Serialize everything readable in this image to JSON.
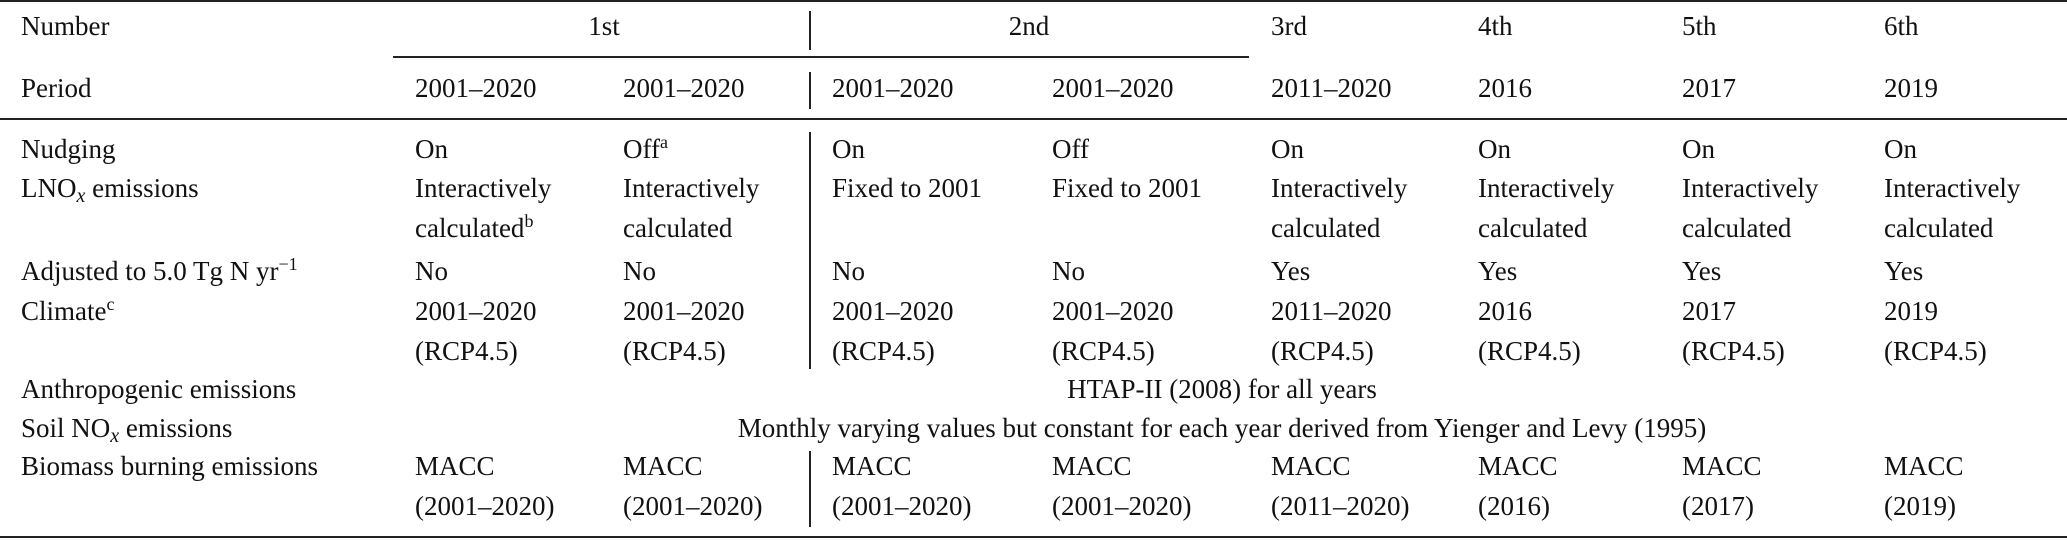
{
  "header": {
    "number_label": "Number",
    "period_label": "Period",
    "numbers": [
      "1st",
      "2nd",
      "3rd",
      "4th",
      "5th",
      "6th"
    ],
    "periods": [
      "2001–2020",
      "2001–2020",
      "2001–2020",
      "2001–2020",
      "2011–2020",
      "2016",
      "2017",
      "2019"
    ]
  },
  "rows": [
    {
      "label": [
        {
          "text": "Nudging"
        }
      ],
      "cells": [
        {
          "lines": [
            "On"
          ]
        },
        {
          "lines": [
            "Off"
          ],
          "note": "a"
        },
        {
          "lines": [
            "On"
          ]
        },
        {
          "lines": [
            "Off"
          ]
        },
        {
          "lines": [
            "On"
          ]
        },
        {
          "lines": [
            "On"
          ]
        },
        {
          "lines": [
            "On"
          ]
        },
        {
          "lines": [
            "On"
          ]
        }
      ]
    },
    {
      "label": [
        {
          "text": "LNO"
        },
        {
          "text": "x",
          "style": "sub"
        },
        {
          "text": " emissions"
        }
      ],
      "cells": [
        {
          "lines": [
            "Interactively",
            "calculated"
          ],
          "note": "b"
        },
        {
          "lines": [
            "Interactively",
            "calculated"
          ]
        },
        {
          "lines": [
            "Fixed to 2001"
          ]
        },
        {
          "lines": [
            "Fixed to 2001"
          ]
        },
        {
          "lines": [
            "Interactively",
            "calculated"
          ]
        },
        {
          "lines": [
            "Interactively",
            "calculated"
          ]
        },
        {
          "lines": [
            "Interactively",
            "calculated"
          ]
        },
        {
          "lines": [
            "Interactively",
            "calculated"
          ]
        }
      ]
    },
    {
      "label": [
        {
          "text": "Adjusted to 5.0 Tg N yr"
        },
        {
          "text": "−1",
          "style": "sup"
        }
      ],
      "cells": [
        {
          "lines": [
            "No"
          ]
        },
        {
          "lines": [
            "No"
          ]
        },
        {
          "lines": [
            "No"
          ]
        },
        {
          "lines": [
            "No"
          ]
        },
        {
          "lines": [
            "Yes"
          ]
        },
        {
          "lines": [
            "Yes"
          ]
        },
        {
          "lines": [
            "Yes"
          ]
        },
        {
          "lines": [
            "Yes"
          ]
        }
      ]
    },
    {
      "label": [
        {
          "text": "Climate"
        },
        {
          "text": "c",
          "style": "sup"
        }
      ],
      "cells": [
        {
          "lines": [
            "2001–2020",
            "(RCP4.5)"
          ]
        },
        {
          "lines": [
            "2001–2020",
            "(RCP4.5)"
          ]
        },
        {
          "lines": [
            "2001–2020",
            "(RCP4.5)"
          ]
        },
        {
          "lines": [
            "2001–2020",
            "(RCP4.5)"
          ]
        },
        {
          "lines": [
            "2011–2020",
            "(RCP4.5)"
          ]
        },
        {
          "lines": [
            "2016",
            "(RCP4.5)"
          ]
        },
        {
          "lines": [
            "2017",
            "(RCP4.5)"
          ]
        },
        {
          "lines": [
            "2019",
            "(RCP4.5)"
          ]
        }
      ]
    },
    {
      "label": [
        {
          "text": "Anthropogenic emissions"
        }
      ],
      "span": "HTAP-II (2008) for all years"
    },
    {
      "label": [
        {
          "text": "Soil NO"
        },
        {
          "text": "x",
          "style": "sub"
        },
        {
          "text": " emissions"
        }
      ],
      "span": "Monthly varying values but constant for each year derived from Yienger and Levy (1995)"
    },
    {
      "label": [
        {
          "text": "Biomass burning emissions"
        }
      ],
      "cells": [
        {
          "lines": [
            "MACC",
            "(2001–2020)"
          ]
        },
        {
          "lines": [
            "MACC",
            "(2001–2020)"
          ]
        },
        {
          "lines": [
            "MACC",
            "(2001–2020)"
          ]
        },
        {
          "lines": [
            "MACC",
            "(2001–2020)"
          ]
        },
        {
          "lines": [
            "MACC",
            "(2011–2020)"
          ]
        },
        {
          "lines": [
            "MACC",
            "(2016)"
          ]
        },
        {
          "lines": [
            "MACC",
            "(2017)"
          ]
        },
        {
          "lines": [
            "MACC",
            "(2019)"
          ]
        }
      ]
    }
  ]
}
